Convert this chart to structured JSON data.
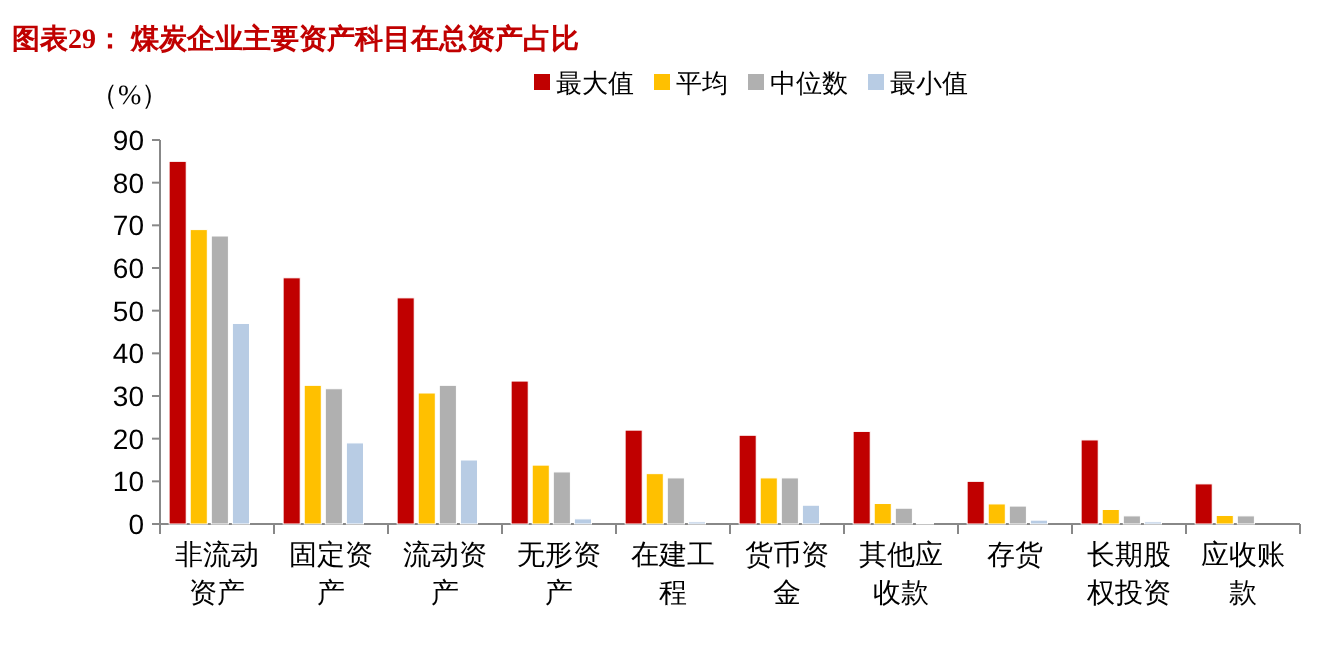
{
  "chart_data": {
    "type": "bar",
    "title": "图表29：  煤炭企业主要资产科目在总资产占比",
    "ylabel": "（%）",
    "categories": [
      "非流动资产",
      "固定资产",
      "流动资产",
      "无形资产",
      "在建工程",
      "货币资金",
      "其他应收款",
      "存货",
      "长期股权投资",
      "应收账款"
    ],
    "series": [
      {
        "name": "最大值",
        "color": "#c00000",
        "values": [
          85,
          57.7,
          53,
          33.5,
          22,
          20.8,
          21.7,
          10,
          19.7,
          9.4
        ]
      },
      {
        "name": "平均",
        "color": "#ffc000",
        "values": [
          69,
          32.5,
          30.7,
          13.8,
          11.8,
          10.8,
          4.8,
          4.7,
          3.4,
          2
        ]
      },
      {
        "name": "中位数",
        "color": "#b0b0b0",
        "values": [
          67.5,
          31.7,
          32.5,
          12.2,
          10.8,
          10.8,
          3.7,
          4.2,
          1.9,
          1.9
        ]
      },
      {
        "name": "最小值",
        "color": "#b8cce4",
        "values": [
          47,
          19,
          15,
          1.2,
          0.5,
          4.4,
          0.2,
          0.9,
          0.5,
          0
        ]
      }
    ],
    "ylim": [
      0,
      90
    ],
    "yticks": [
      0,
      10,
      20,
      30,
      40,
      50,
      60,
      70,
      80,
      90
    ],
    "grid": false,
    "legend": "top"
  }
}
